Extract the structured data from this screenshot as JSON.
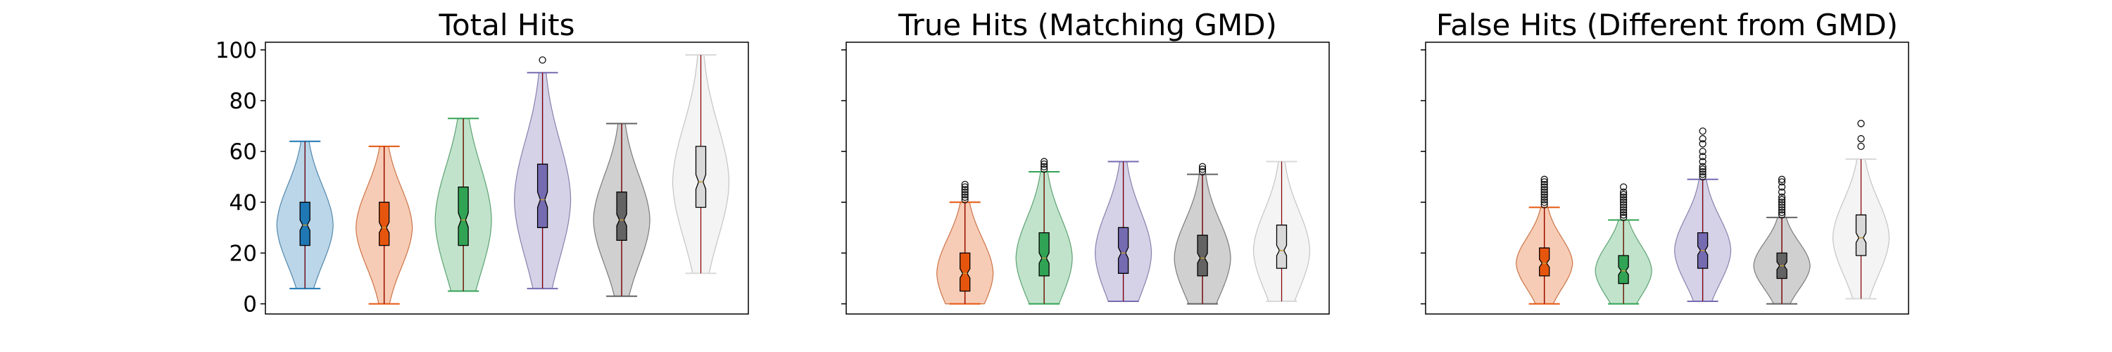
{
  "chart_data": [
    {
      "type": "violin",
      "title": "Total Hits",
      "ylim": [
        -4,
        103
      ],
      "yticks": [
        0,
        20,
        40,
        60,
        80,
        100
      ],
      "show_yticklabels": true,
      "xlim": [
        0.5,
        6.6
      ],
      "grid": false,
      "series": [
        {
          "pos": 1,
          "color": "#1f77b4",
          "min": 6,
          "q1": 23,
          "median": 31,
          "q3": 40,
          "max": 64,
          "outliers": []
        },
        {
          "pos": 2,
          "color": "#e6550d",
          "min": 0,
          "q1": 23,
          "median": 30,
          "q3": 40,
          "max": 62,
          "outliers": []
        },
        {
          "pos": 3,
          "color": "#31a354",
          "min": 5,
          "q1": 23,
          "median": 33,
          "q3": 46,
          "max": 73,
          "outliers": []
        },
        {
          "pos": 4,
          "color": "#756bb1",
          "min": 6,
          "q1": 30,
          "median": 41,
          "q3": 55,
          "max": 91,
          "outliers": [
            96
          ]
        },
        {
          "pos": 5,
          "color": "#636363",
          "min": 3,
          "q1": 25,
          "median": 33,
          "q3": 44,
          "max": 71,
          "outliers": []
        },
        {
          "pos": 6,
          "color": "#d9d9d9",
          "min": 12,
          "q1": 38,
          "median": 48,
          "q3": 62,
          "max": 98,
          "outliers": []
        }
      ]
    },
    {
      "type": "violin",
      "title": "True Hits (Matching GMD)",
      "ylim": [
        -4,
        103
      ],
      "yticks": [
        0,
        20,
        40,
        60,
        80,
        100
      ],
      "show_yticklabels": false,
      "xlim": [
        0.5,
        6.6
      ],
      "grid": false,
      "series": [
        {
          "pos": 2,
          "color": "#e6550d",
          "min": 0,
          "q1": 5,
          "median": 12,
          "q3": 20,
          "max": 40,
          "outliers": [
            41,
            42,
            43,
            44,
            45,
            46,
            47
          ]
        },
        {
          "pos": 3,
          "color": "#31a354",
          "min": 0,
          "q1": 11,
          "median": 18,
          "q3": 28,
          "max": 52,
          "outliers": [
            53,
            54,
            55,
            56
          ]
        },
        {
          "pos": 4,
          "color": "#756bb1",
          "min": 1,
          "q1": 12,
          "median": 20,
          "q3": 30,
          "max": 56,
          "outliers": []
        },
        {
          "pos": 5,
          "color": "#636363",
          "min": 0,
          "q1": 11,
          "median": 18,
          "q3": 27,
          "max": 51,
          "outliers": [
            52,
            53,
            54
          ]
        },
        {
          "pos": 6,
          "color": "#d9d9d9",
          "min": 1,
          "q1": 14,
          "median": 21,
          "q3": 31,
          "max": 56,
          "outliers": []
        }
      ]
    },
    {
      "type": "violin",
      "title": "False Hits (Different from GMD)",
      "ylim": [
        -4,
        103
      ],
      "yticks": [
        0,
        20,
        40,
        60,
        80,
        100
      ],
      "show_yticklabels": false,
      "xlim": [
        0.5,
        6.6
      ],
      "grid": false,
      "series": [
        {
          "pos": 2,
          "color": "#e6550d",
          "min": 0,
          "q1": 11,
          "median": 16,
          "q3": 22,
          "max": 38,
          "outliers": [
            39,
            40,
            41,
            42,
            43,
            44,
            45,
            46,
            47,
            48,
            49
          ]
        },
        {
          "pos": 3,
          "color": "#31a354",
          "min": 0,
          "q1": 8,
          "median": 13,
          "q3": 19,
          "max": 33,
          "outliers": [
            34,
            35,
            36,
            37,
            38,
            39,
            40,
            41,
            42,
            43,
            44,
            46
          ]
        },
        {
          "pos": 4,
          "color": "#756bb1",
          "min": 1,
          "q1": 14,
          "median": 21,
          "q3": 28,
          "max": 49,
          "outliers": [
            50,
            51,
            52,
            53,
            54,
            56,
            58,
            60,
            63,
            65,
            68
          ]
        },
        {
          "pos": 5,
          "color": "#636363",
          "min": 0,
          "q1": 10,
          "median": 15,
          "q3": 20,
          "max": 34,
          "outliers": [
            35,
            36,
            37,
            38,
            39,
            40,
            41,
            42,
            44,
            46,
            48,
            49
          ]
        },
        {
          "pos": 6,
          "color": "#d9d9d9",
          "min": 2,
          "q1": 19,
          "median": 26,
          "q3": 35,
          "max": 57,
          "outliers": [
            62,
            65,
            71
          ]
        }
      ]
    }
  ]
}
